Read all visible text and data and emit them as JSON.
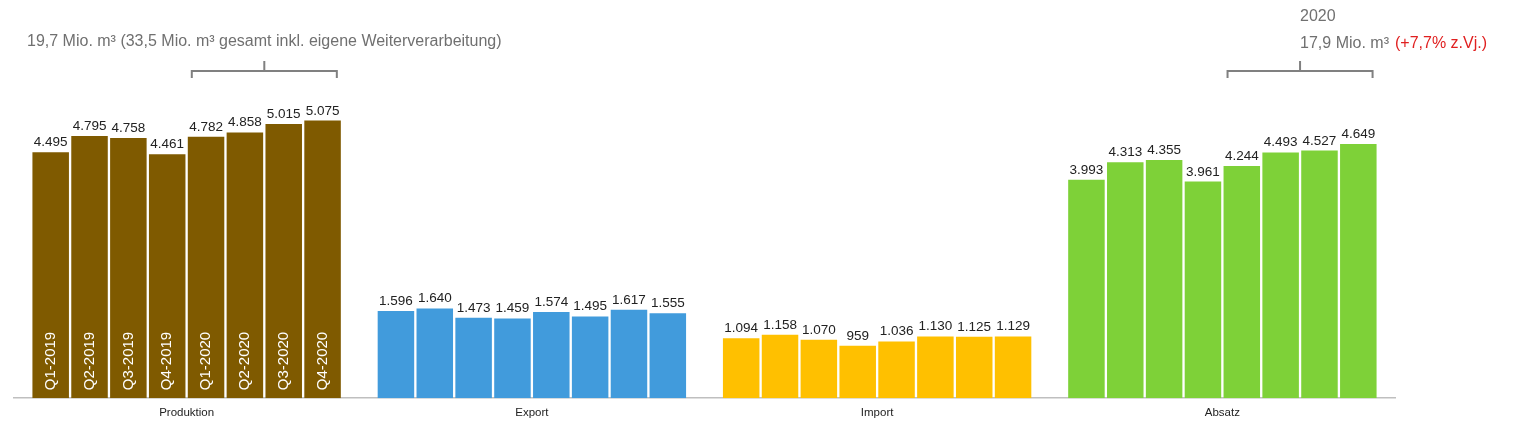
{
  "chart_data": {
    "type": "bar",
    "categories": [
      "Produktion",
      "Export",
      "Import",
      "Absatz"
    ],
    "series": [
      {
        "name": "Q1-2019",
        "colors": [
          "#7f5a00",
          "#419bdc",
          "#ffc000",
          "#7ed138"
        ],
        "values": [
          4495,
          1596,
          1094,
          3993
        ],
        "value_labels": [
          "4.495",
          "1.596",
          "1.094",
          "3.993"
        ]
      },
      {
        "name": "Q2-2019",
        "colors": [
          "#7f5a00",
          "#419bdc",
          "#ffc000",
          "#7ed138"
        ],
        "values": [
          4795,
          1640,
          1158,
          4313
        ],
        "value_labels": [
          "4.795",
          "1.640",
          "1.158",
          "4.313"
        ]
      },
      {
        "name": "Q3-2019",
        "colors": [
          "#7f5a00",
          "#419bdc",
          "#ffc000",
          "#7ed138"
        ],
        "values": [
          4758,
          1473,
          1070,
          4355
        ],
        "value_labels": [
          "4.758",
          "1.473",
          "1.070",
          "4.355"
        ]
      },
      {
        "name": "Q4-2019",
        "colors": [
          "#7f5a00",
          "#419bdc",
          "#ffc000",
          "#7ed138"
        ],
        "values": [
          4461,
          1459,
          959,
          3961
        ],
        "value_labels": [
          "4.461",
          "1.459",
          "959",
          "3.961"
        ]
      },
      {
        "name": "Q1-2020",
        "colors": [
          "#7f5a00",
          "#419bdc",
          "#ffc000",
          "#7ed138"
        ],
        "values": [
          4782,
          1574,
          1036,
          4244
        ],
        "value_labels": [
          "4.782",
          "1.574",
          "1.036",
          "4.244"
        ]
      },
      {
        "name": "Q2-2020",
        "colors": [
          "#7f5a00",
          "#419bdc",
          "#ffc000",
          "#7ed138"
        ],
        "values": [
          4858,
          1495,
          1130,
          4493
        ],
        "value_labels": [
          "4.858",
          "1.495",
          "1.130",
          "4.493"
        ]
      },
      {
        "name": "Q3-2020",
        "colors": [
          "#7f5a00",
          "#419bdc",
          "#ffc000",
          "#7ed138"
        ],
        "values": [
          5015,
          1617,
          1125,
          4527
        ],
        "value_labels": [
          "5.015",
          "1.617",
          "1.125",
          "4.527"
        ]
      },
      {
        "name": "Q4-2020",
        "colors": [
          "#7f5a00",
          "#419bdc",
          "#ffc000",
          "#7ed138"
        ],
        "values": [
          5075,
          1555,
          1129,
          4649
        ],
        "value_labels": [
          "5.075",
          "1.555",
          "1.129",
          "4.649"
        ]
      }
    ],
    "annotations": [
      "19,7 Mio. m³ (33,5 Mio. m³ gesamt inkl. eigene Weiterverarbeitung)",
      "2020",
      "17,9 Mio. m³",
      "(+7,7% z.Vj.)"
    ],
    "legend": false,
    "grid": false
  }
}
